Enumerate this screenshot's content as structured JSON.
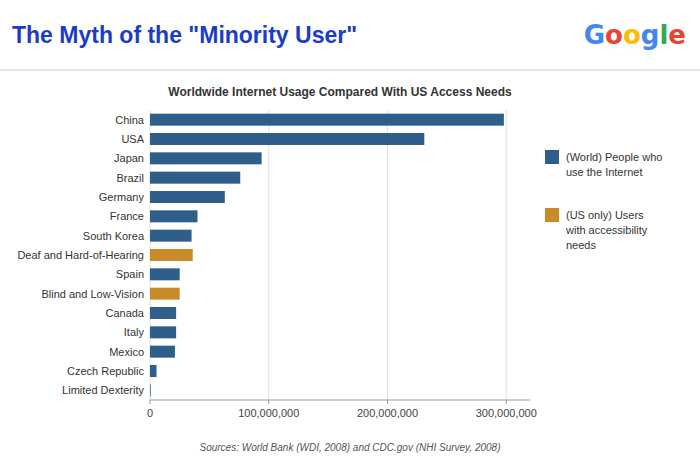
{
  "chart_data": {
    "type": "bar",
    "orientation": "horizontal",
    "title": "The Myth of the \"Minority User\"",
    "title_color": "#1A3CC8",
    "subtitle": "Worldwide Internet Usage Compared With US Access Needs",
    "source": "Sources: World Bank (WDI, 2008) and CDC.gov (NHI Survey, 2008)",
    "annotations": [
      {
        "text": "G",
        "color": "#4285F4"
      },
      {
        "text": "o",
        "color": "#EA4335"
      },
      {
        "text": "o",
        "color": "#FBBC05"
      },
      {
        "text": "g",
        "color": "#4285F4"
      },
      {
        "text": "l",
        "color": "#34A853"
      },
      {
        "text": "e",
        "color": "#EA4335"
      }
    ],
    "categories": [
      "China",
      "USA",
      "Japan",
      "Brazil",
      "Germany",
      "France",
      "South Korea",
      "Deaf and Hard-of-Hearing",
      "Spain",
      "Blind and Low-Vision",
      "Canada",
      "Italy",
      "Mexico",
      "Czech Republic",
      "Limited Dexterity"
    ],
    "values": [
      298000000,
      231000000,
      94000000,
      76000000,
      63000000,
      40000000,
      35000000,
      36000000,
      25000000,
      25000000,
      22000000,
      22000000,
      21000000,
      5500000,
      600000
    ],
    "colors": [
      "#2E5F8A",
      "#2E5F8A",
      "#2E5F8A",
      "#2E5F8A",
      "#2E5F8A",
      "#2E5F8A",
      "#2E5F8A",
      "#C98B2A",
      "#2E5F8A",
      "#C98B2A",
      "#2E5F8A",
      "#2E5F8A",
      "#2E5F8A",
      "#2E5F8A",
      "#2E5F8A"
    ],
    "legend_entries": [
      {
        "name": "(World) People who\nuse the Internet",
        "color": "#2E5F8A"
      },
      {
        "name": "(US only) Users\nwith accessibility\nneeds",
        "color": "#C98B2A"
      }
    ],
    "xlim": [
      0,
      320000000
    ],
    "xticks": [
      0,
      {
        "value": 100000000,
        "label": "100,000,000"
      },
      {
        "value": 200000000,
        "label": "200,000,000"
      },
      {
        "value": 300000000,
        "label": "300,000,000"
      }
    ],
    "grid": true
  }
}
